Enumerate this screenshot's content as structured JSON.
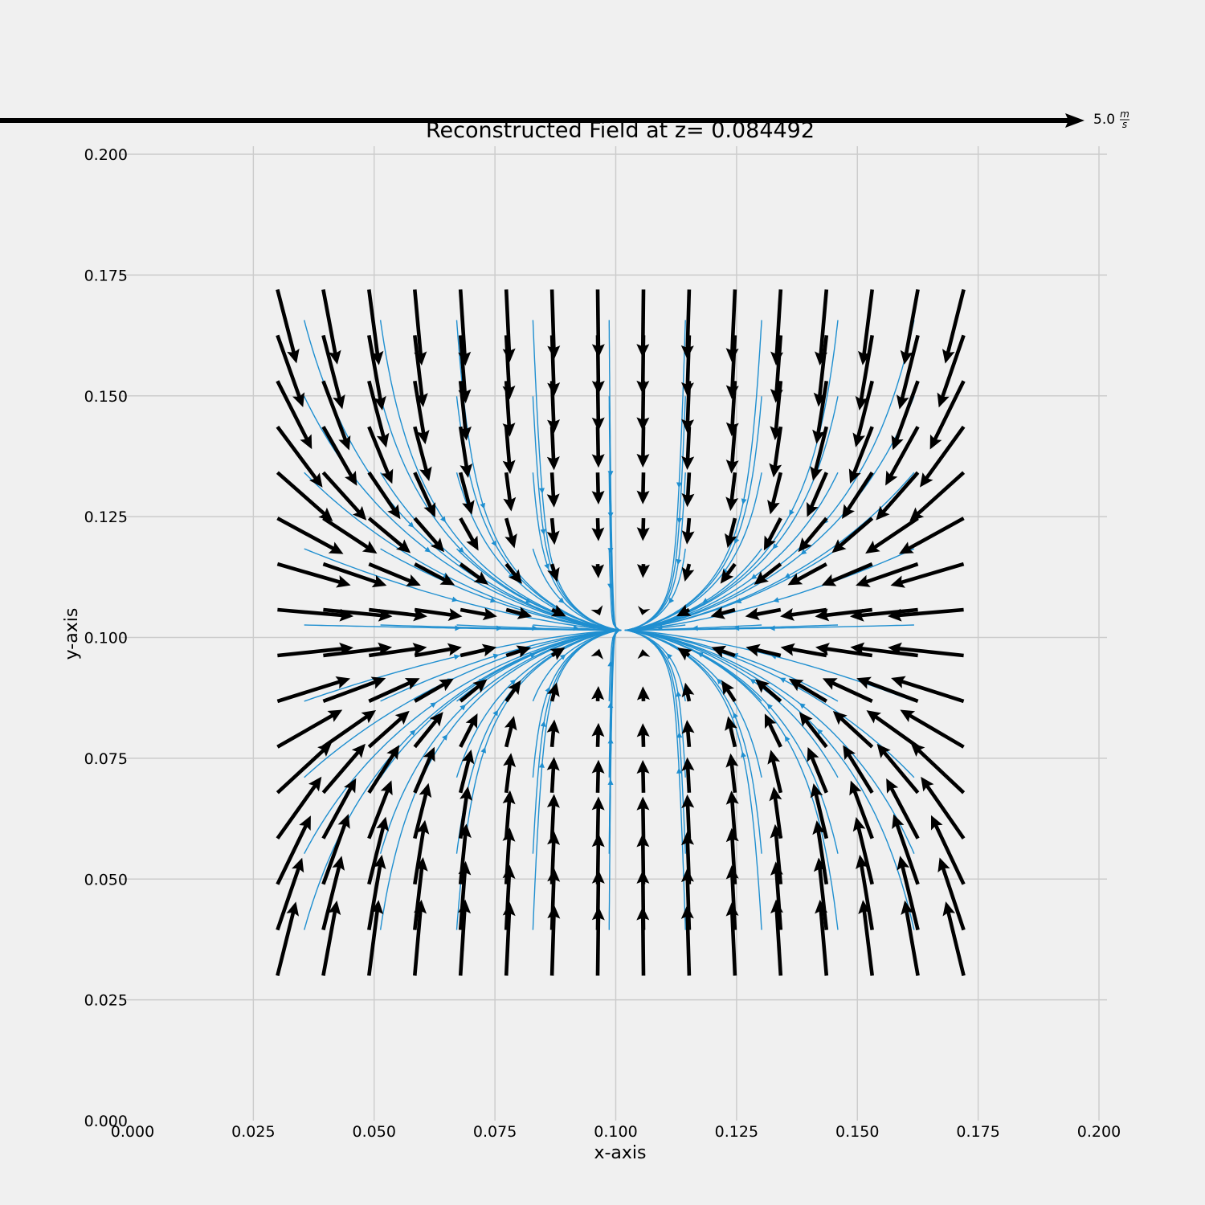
{
  "chart_data": {
    "type": "quiver",
    "title": "Reconstructed Field at z= 0.084492",
    "xlabel": "x-axis",
    "ylabel": "y-axis",
    "xlim": [
      0.0,
      0.2
    ],
    "ylim": [
      0.0,
      0.2
    ],
    "x_ticks": [
      "0.000",
      "0.025",
      "0.050",
      "0.075",
      "0.100",
      "0.125",
      "0.150",
      "0.175",
      "0.200"
    ],
    "y_ticks": [
      "0.000",
      "0.025",
      "0.050",
      "0.075",
      "0.100",
      "0.125",
      "0.150",
      "0.175",
      "0.200"
    ],
    "grid": true,
    "quiver_key": {
      "value": 5.0,
      "unit": "m/s",
      "label_number": "5.0",
      "unit_num": "m",
      "unit_den": "s"
    },
    "field_center": [
      0.1015,
      0.1015
    ],
    "sample_grid": {
      "x_min": 0.03,
      "x_max": 0.172,
      "y_min": 0.03,
      "y_max": 0.172,
      "n": 16
    },
    "colors": {
      "arrow": "#000000",
      "streamline": "#1f8fd0",
      "grid": "#cbcbcb",
      "background": "#f0f0f0"
    }
  }
}
